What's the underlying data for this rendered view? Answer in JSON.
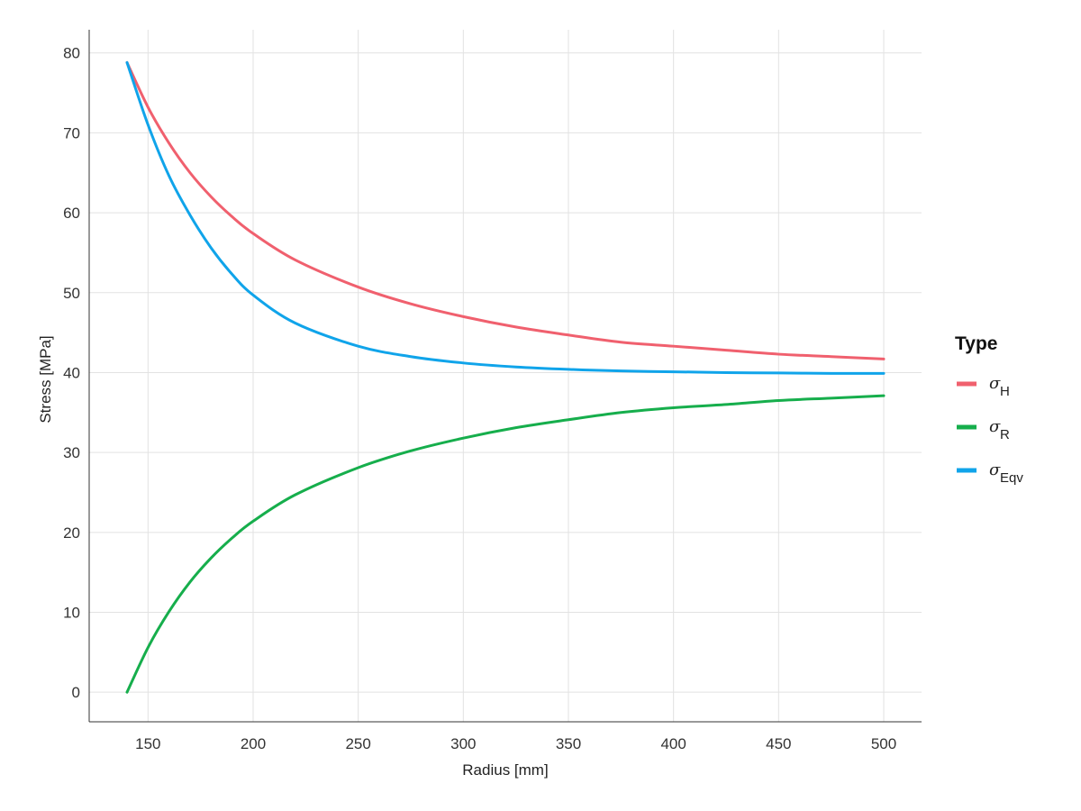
{
  "chart_data": {
    "type": "line",
    "title": "",
    "xlabel": "Radius [mm]",
    "ylabel": "Stress [MPa]",
    "xlim": [
      122,
      518
    ],
    "ylim": [
      -3.7,
      82.9
    ],
    "x_ticks": [
      150,
      200,
      250,
      300,
      350,
      400,
      450,
      500
    ],
    "y_ticks": [
      0,
      10,
      20,
      30,
      40,
      50,
      60,
      70,
      80
    ],
    "grid": true,
    "legend": {
      "title": "Type",
      "placement": "right",
      "entries": [
        {
          "symbol": "σ",
          "subscript": "H",
          "color": "#f0606e"
        },
        {
          "symbol": "σ",
          "subscript": "R",
          "color": "#16ae4c"
        },
        {
          "symbol": "σ",
          "subscript": "Eqv",
          "color": "#10a4ea"
        }
      ]
    },
    "x": [
      140,
      150,
      160,
      170,
      180,
      190,
      200,
      220,
      250,
      275,
      300,
      325,
      350,
      375,
      400,
      425,
      450,
      475,
      500
    ],
    "series": [
      {
        "name": "σH",
        "color": "#f0606e",
        "values": [
          78.8,
          73.2,
          68.7,
          65.0,
          62.0,
          59.5,
          57.4,
          54.1,
          50.7,
          48.6,
          47.0,
          45.7,
          44.7,
          43.8,
          43.3,
          42.8,
          42.3,
          42.0,
          41.7
        ]
      },
      {
        "name": "σR",
        "color": "#16ae4c",
        "values": [
          0.0,
          5.6,
          10.1,
          13.8,
          16.8,
          19.3,
          21.4,
          24.7,
          28.1,
          30.2,
          31.8,
          33.1,
          34.1,
          35.0,
          35.6,
          36.0,
          36.5,
          36.8,
          37.1
        ]
      },
      {
        "name": "σEqv",
        "color": "#10a4ea",
        "values": [
          78.8,
          71.0,
          64.6,
          59.7,
          55.6,
          52.3,
          49.7,
          46.2,
          43.3,
          42.0,
          41.2,
          40.7,
          40.4,
          40.2,
          40.1,
          40.0,
          39.95,
          39.9,
          39.9
        ]
      }
    ]
  }
}
